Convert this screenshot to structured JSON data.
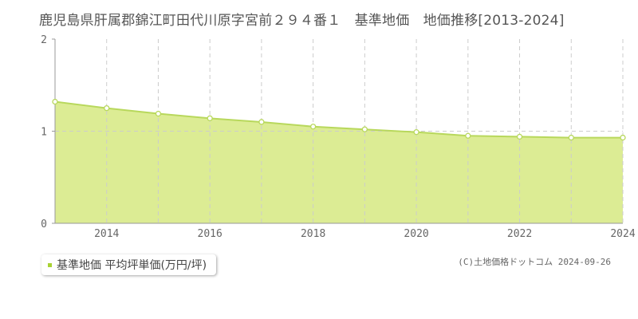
{
  "title": "鹿児島県肝属郡錦江町田代川原字宮前２９４番１　基準地価　地価推移[2013-2024]",
  "legend": {
    "label": "基準地価 平均坪単価(万円/坪)",
    "marker_color": "#a8d234"
  },
  "copyright": "(C)土地価格ドットコム 2024-09-26",
  "colors": {
    "area_fill": "#dcec94",
    "line": "#b8d85c",
    "point_fill": "#ffffff",
    "grid": "#cccccc",
    "axis": "#999999"
  },
  "chart_data": {
    "type": "area",
    "x": [
      2013,
      2014,
      2015,
      2016,
      2017,
      2018,
      2019,
      2020,
      2021,
      2022,
      2023,
      2024
    ],
    "series": [
      {
        "values": [
          1.32,
          1.25,
          1.19,
          1.14,
          1.1,
          1.05,
          1.02,
          0.99,
          0.95,
          0.94,
          0.93,
          0.93
        ]
      }
    ],
    "xlim": [
      2013,
      2024
    ],
    "ylim": [
      0,
      2
    ],
    "xticks": [
      "2014",
      "2016",
      "2018",
      "2020",
      "2022",
      "2024"
    ],
    "yticks": [
      "0",
      "1",
      "2"
    ],
    "grid": true
  }
}
